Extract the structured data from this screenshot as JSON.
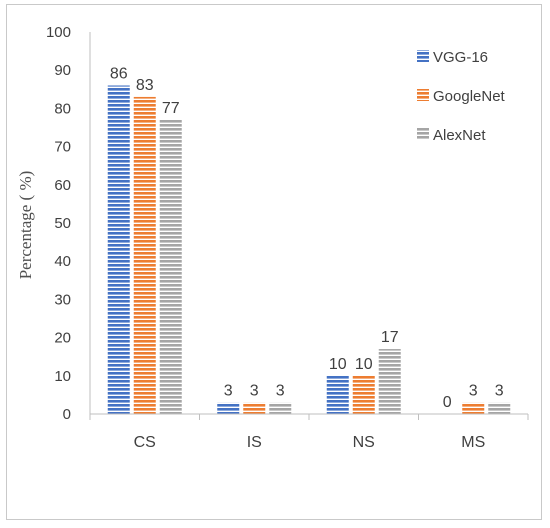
{
  "chart_data": {
    "type": "bar",
    "title": "",
    "xlabel": "",
    "ylabel": "Percentage ( %)",
    "ylim": [
      0,
      100
    ],
    "yticks": [
      0,
      10,
      20,
      30,
      40,
      50,
      60,
      70,
      80,
      90,
      100
    ],
    "categories": [
      "CS",
      "IS",
      "NS",
      "MS"
    ],
    "series": [
      {
        "name": "VGG-16",
        "values": [
          86,
          3,
          10,
          0
        ],
        "color": "#4472c4"
      },
      {
        "name": "GoogleNet",
        "values": [
          83,
          3,
          10,
          3
        ],
        "color": "#ed7d31"
      },
      {
        "name": "AlexNet",
        "values": [
          77,
          3,
          17,
          3
        ],
        "color": "#a5a5a5"
      }
    ],
    "data_labels": true,
    "bar_pattern": "horizontal-stripes",
    "grid": false,
    "legend": "top-right"
  }
}
